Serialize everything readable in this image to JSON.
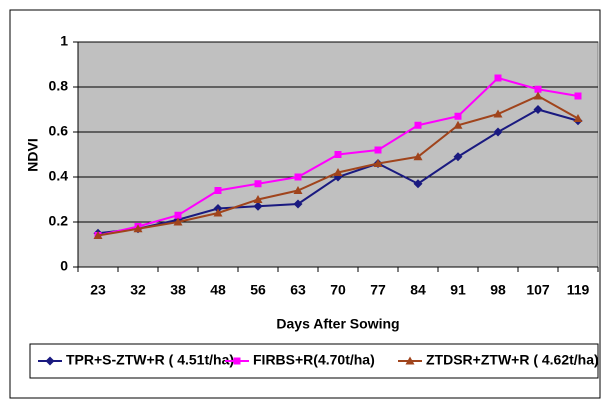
{
  "chart_data": {
    "type": "line",
    "x_label": "Days After Sowing",
    "y_label": "NDVI",
    "categories": [
      "23",
      "32",
      "38",
      "48",
      "56",
      "63",
      "70",
      "77",
      "84",
      "91",
      "98",
      "107",
      "119"
    ],
    "series": [
      {
        "name": "TPR+S-ZTW+R ( 4.51t/ha)",
        "color": "#1a1a80",
        "marker": "diamond",
        "values": [
          0.15,
          0.17,
          0.21,
          0.26,
          0.27,
          0.28,
          0.4,
          0.46,
          0.37,
          0.49,
          0.6,
          0.7,
          0.65
        ]
      },
      {
        "name": "FIRBS+R(4.70t/ha)",
        "color": "#ff00ff",
        "marker": "square",
        "values": [
          0.14,
          0.18,
          0.23,
          0.34,
          0.37,
          0.4,
          0.5,
          0.52,
          0.63,
          0.67,
          0.84,
          0.79,
          0.76
        ]
      },
      {
        "name": "ZTDSR+ZTW+R ( 4.62t/ha)",
        "color": "#a0441c",
        "marker": "triangle",
        "values": [
          0.14,
          0.17,
          0.2,
          0.24,
          0.3,
          0.34,
          0.42,
          0.46,
          0.49,
          0.63,
          0.68,
          0.76,
          0.66
        ]
      }
    ],
    "ylim": [
      0,
      1
    ],
    "yticks": [
      0,
      0.2,
      0.4,
      0.6,
      0.8,
      1
    ],
    "grid": true,
    "legend": "bottom",
    "plot_background": "#c0c0c0"
  }
}
